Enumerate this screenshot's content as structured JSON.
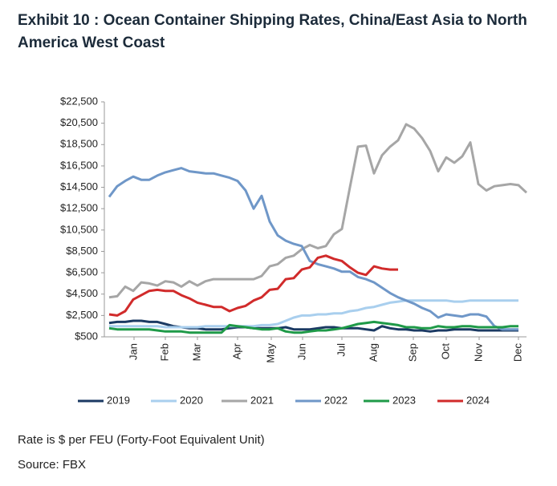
{
  "chart_data": {
    "type": "line",
    "title": "Exhibit 10 : Ocean Container Shipping Rates, China/East Asia to North America West Coast",
    "note": "Rate is $ per FEU (Forty-Foot Equivalent Unit)",
    "source": "Source: FBX",
    "x": [
      0,
      1,
      2,
      3,
      4,
      5,
      6,
      7,
      8,
      9,
      10,
      11,
      12,
      13,
      14,
      15,
      16,
      17,
      18,
      19,
      20,
      21,
      22,
      23,
      24,
      25,
      26,
      27,
      28,
      29,
      30,
      31,
      32,
      33,
      34,
      35,
      36,
      37,
      38,
      39,
      40,
      41,
      42,
      43,
      44,
      45,
      46,
      47,
      48,
      49,
      50,
      51,
      52
    ],
    "xlim": [
      -0.6,
      52
    ],
    "xticks": [
      {
        "value": 3.1,
        "label": "Jan"
      },
      {
        "value": 7,
        "label": "Feb"
      },
      {
        "value": 11,
        "label": "Mar"
      },
      {
        "value": 16,
        "label": "Apr"
      },
      {
        "value": 20.2,
        "label": "May"
      },
      {
        "value": 24.1,
        "label": "Jun"
      },
      {
        "value": 29,
        "label": "Jul"
      },
      {
        "value": 33,
        "label": "Aug"
      },
      {
        "value": 37.9,
        "label": "Sep"
      },
      {
        "value": 42,
        "label": "Oct"
      },
      {
        "value": 46.1,
        "label": "Nov"
      },
      {
        "value": 51,
        "label": "Dec"
      }
    ],
    "ylim": [
      500,
      22500
    ],
    "yticks": [
      {
        "value": 500,
        "label": "$500"
      },
      {
        "value": 2500,
        "label": "$2,500"
      },
      {
        "value": 4500,
        "label": "$4,500"
      },
      {
        "value": 6500,
        "label": "$6,500"
      },
      {
        "value": 8500,
        "label": "$8,500"
      },
      {
        "value": 10500,
        "label": "$10,500"
      },
      {
        "value": 12500,
        "label": "$12,500"
      },
      {
        "value": 14500,
        "label": "$14,500"
      },
      {
        "value": 16500,
        "label": "$16,500"
      },
      {
        "value": 18500,
        "label": "$18,500"
      },
      {
        "value": 20500,
        "label": "$20,500"
      },
      {
        "value": 22500,
        "label": "$22,500"
      }
    ],
    "legend": "bottom",
    "series": [
      {
        "name": "2019",
        "color": "#1b3a63",
        "values": [
          1800,
          1900,
          1900,
          2000,
          2000,
          1900,
          1900,
          1700,
          1500,
          1400,
          1300,
          1300,
          1200,
          1200,
          1200,
          1300,
          1400,
          1400,
          1300,
          1300,
          1300,
          1300,
          1400,
          1200,
          1200,
          1200,
          1300,
          1400,
          1400,
          1300,
          1300,
          1300,
          1200,
          1100,
          1500,
          1300,
          1200,
          1200,
          1100,
          1100,
          1000,
          1100,
          1100,
          1200,
          1200,
          1200,
          1100,
          1100,
          1100,
          1100,
          1100,
          1100,
          null
        ]
      },
      {
        "name": "2020",
        "color": "#a9cfee",
        "values": [
          1500,
          1500,
          1500,
          1500,
          1500,
          1500,
          1500,
          1400,
          1400,
          1400,
          1400,
          1400,
          1500,
          1500,
          1500,
          1500,
          1500,
          1500,
          1500,
          1600,
          1600,
          1700,
          2000,
          2300,
          2500,
          2500,
          2600,
          2600,
          2700,
          2700,
          2900,
          3000,
          3200,
          3300,
          3500,
          3700,
          3800,
          3900,
          3900,
          3900,
          3900,
          3900,
          3900,
          3800,
          3800,
          3900,
          3900,
          3900,
          3900,
          3900,
          3900,
          3900,
          null
        ]
      },
      {
        "name": "2021",
        "color": "#a6a6a6",
        "values": [
          4200,
          4300,
          5200,
          4800,
          5600,
          5500,
          5300,
          5700,
          5600,
          5200,
          5700,
          5300,
          5700,
          5900,
          5900,
          5900,
          5900,
          5900,
          5900,
          6200,
          7100,
          7300,
          7900,
          8100,
          8700,
          9100,
          8800,
          9000,
          10100,
          10600,
          14500,
          18300,
          18400,
          15800,
          17500,
          18300,
          18900,
          20400,
          20000,
          19100,
          17900,
          16000,
          17300,
          16800,
          17400,
          18700,
          14800,
          14200,
          14600,
          14700,
          14800,
          14700,
          14000
        ]
      },
      {
        "name": "2022",
        "color": "#6f97c8",
        "values": [
          13600,
          14600,
          15100,
          15500,
          15200,
          15200,
          15600,
          15900,
          16100,
          16300,
          16000,
          15900,
          15800,
          15800,
          15600,
          15400,
          15100,
          14200,
          12500,
          13700,
          11300,
          10000,
          9500,
          9200,
          9000,
          7600,
          7300,
          7100,
          6900,
          6600,
          6600,
          6100,
          5900,
          5600,
          5100,
          4600,
          4200,
          3900,
          3600,
          3200,
          2900,
          2300,
          2600,
          2500,
          2400,
          2600,
          2600,
          2400,
          1500,
          1200,
          1200,
          1200,
          null
        ]
      },
      {
        "name": "2023",
        "color": "#1f9a48",
        "values": [
          1300,
          1200,
          1200,
          1200,
          1200,
          1200,
          1100,
          1000,
          1000,
          1000,
          900,
          900,
          900,
          900,
          900,
          1600,
          1500,
          1400,
          1300,
          1200,
          1200,
          1300,
          1000,
          900,
          900,
          1000,
          1100,
          1100,
          1200,
          1300,
          1500,
          1700,
          1800,
          1900,
          1800,
          1700,
          1600,
          1400,
          1400,
          1300,
          1300,
          1500,
          1400,
          1400,
          1500,
          1500,
          1400,
          1400,
          1400,
          1400,
          1500,
          1500,
          null
        ]
      },
      {
        "name": "2024",
        "color": "#d12b2b",
        "values": [
          2600,
          2500,
          2900,
          4000,
          4400,
          4800,
          4900,
          4800,
          4800,
          4400,
          4100,
          3700,
          3500,
          3300,
          3300,
          2900,
          3200,
          3400,
          3900,
          4200,
          4900,
          5000,
          5900,
          6000,
          6800,
          7000,
          7900,
          8100,
          7800,
          7600,
          7000,
          6500,
          6300,
          7100,
          6900,
          6800,
          6800,
          null,
          null,
          null,
          null,
          null,
          null,
          null,
          null,
          null,
          null,
          null,
          null,
          null,
          null,
          null,
          null
        ]
      }
    ]
  }
}
